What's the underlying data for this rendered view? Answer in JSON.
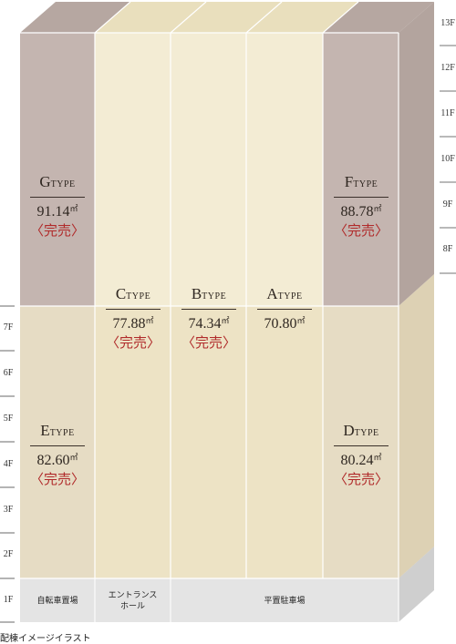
{
  "units": [
    {
      "key": "G",
      "letter": "G",
      "suffix": "TYPE",
      "area": "91.14",
      "unit": "㎡",
      "status": "〈完売〉"
    },
    {
      "key": "F",
      "letter": "F",
      "suffix": "TYPE",
      "area": "88.78",
      "unit": "㎡",
      "status": "〈完売〉"
    },
    {
      "key": "C",
      "letter": "C",
      "suffix": "TYPE",
      "area": "77.88",
      "unit": "㎡",
      "status": "〈完売〉"
    },
    {
      "key": "B",
      "letter": "B",
      "suffix": "TYPE",
      "area": "74.34",
      "unit": "㎡",
      "status": "〈完売〉"
    },
    {
      "key": "A",
      "letter": "A",
      "suffix": "TYPE",
      "area": "70.80",
      "unit": "㎡",
      "status": ""
    },
    {
      "key": "E",
      "letter": "E",
      "suffix": "TYPE",
      "area": "82.60",
      "unit": "㎡",
      "status": "〈完売〉"
    },
    {
      "key": "D",
      "letter": "D",
      "suffix": "TYPE",
      "area": "80.24",
      "unit": "㎡",
      "status": "〈完売〉"
    }
  ],
  "floors_right": [
    "13F",
    "12F",
    "11F",
    "10F",
    "9F",
    "8F"
  ],
  "floors_left": [
    "7F",
    "6F",
    "5F",
    "4F",
    "3F",
    "2F",
    "1F"
  ],
  "ground_floor": {
    "bicycle": "自転車置場",
    "entrance_line1": "エントランス",
    "entrance_line2": "ホール",
    "parking": "平置駐車場"
  },
  "caption": "配棟イメージイラスト",
  "colors": {
    "upper_block": "#c9bcb6",
    "lower_block": "#e6dcc4",
    "ground": "#e3e3e3",
    "sold": "#b02a2a"
  }
}
